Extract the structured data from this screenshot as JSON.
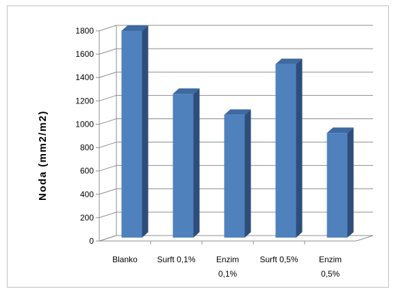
{
  "chart_data": {
    "type": "bar",
    "categories": [
      [
        "Blanko"
      ],
      [
        "Surft 0,1%"
      ],
      [
        "Enzim",
        "0,1%"
      ],
      [
        "Surft  0,5%"
      ],
      [
        "Enzim",
        "0,5%"
      ]
    ],
    "values": [
      1800,
      1260,
      1080,
      1515,
      925
    ],
    "title": "",
    "xlabel": "",
    "ylabel": "Noda  (mm2/m2)",
    "ylim": [
      0,
      1800
    ],
    "yticks": [
      0,
      200,
      400,
      600,
      800,
      1000,
      1200,
      1400,
      1600,
      1800
    ],
    "grid": true,
    "legend": "none",
    "style": "3d-column",
    "colors": {
      "bar_front": "#4f81bd",
      "bar_top": "#3e69a1",
      "bar_side": "#2e4d7a",
      "grid": "#8c8c8c",
      "frame": "#bfbfbf"
    }
  }
}
